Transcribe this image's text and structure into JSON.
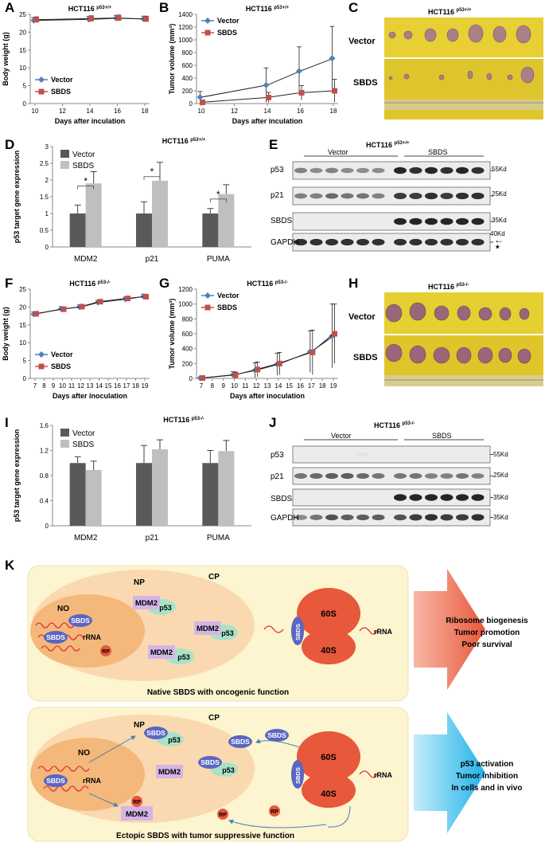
{
  "panel_letters": [
    "A",
    "B",
    "C",
    "D",
    "E",
    "F",
    "G",
    "H",
    "I",
    "J",
    "K"
  ],
  "chart_data": [
    {
      "id": "A",
      "type": "line",
      "title": "HCT116",
      "title_sup": "p53+/+",
      "xlabel": "Days after inculation",
      "ylabel": "Body weight (g)",
      "x": [
        10,
        14,
        16,
        18
      ],
      "xticks": [
        10,
        12,
        14,
        16,
        18
      ],
      "xlim": [
        10,
        18
      ],
      "yticks": [
        0,
        5,
        10,
        15,
        20,
        25
      ],
      "ylim": [
        0,
        25
      ],
      "legend": "bottom-left",
      "series": [
        {
          "name": "Vector",
          "color": "#4f81bd",
          "marker": "diamond",
          "values": [
            23.3,
            23.6,
            23.9,
            23.7
          ],
          "err": [
            0.8,
            0.8,
            0.8,
            0.8
          ]
        },
        {
          "name": "SBDS",
          "color": "#c0504d",
          "marker": "square",
          "values": [
            23.5,
            23.8,
            24.0,
            23.7
          ],
          "err": [
            0.8,
            0.8,
            0.8,
            0.8
          ]
        }
      ]
    },
    {
      "id": "B",
      "type": "line",
      "title": "HCT116",
      "title_sup": "p53+/+",
      "xlabel": "Days after inculation",
      "ylabel": "Tumor volume (mm³)",
      "x": [
        10,
        14,
        16,
        18
      ],
      "xticks": [
        10,
        12,
        14,
        16,
        18
      ],
      "xlim": [
        10,
        18
      ],
      "yticks": [
        0,
        200,
        400,
        600,
        800,
        1000,
        1200,
        1400
      ],
      "ylim": [
        0,
        1400
      ],
      "legend": "top-left",
      "series": [
        {
          "name": "Vector",
          "color": "#4f81bd",
          "marker": "diamond",
          "values": [
            100,
            290,
            510,
            710
          ],
          "err": [
            90,
            270,
            380,
            500
          ]
        },
        {
          "name": "SBDS",
          "color": "#c0504d",
          "marker": "square",
          "values": [
            20,
            95,
            170,
            200
          ],
          "err": [
            20,
            80,
            110,
            180
          ]
        }
      ]
    },
    {
      "id": "D",
      "type": "bar",
      "title": "HCT116",
      "title_sup": "p53+/+",
      "ylabel": "p53 target gene expression",
      "categories": [
        "MDM2",
        "p21",
        "PUMA"
      ],
      "yticks": [
        0,
        0.5,
        1,
        1.5,
        2,
        2.5,
        3
      ],
      "ylim": [
        0,
        3
      ],
      "legend": "top-left",
      "significance": [
        "*",
        "*",
        "*"
      ],
      "series": [
        {
          "name": "Vector",
          "color": "#595959",
          "values": [
            1.0,
            1.0,
            1.0
          ],
          "err": [
            0.25,
            0.35,
            0.15
          ]
        },
        {
          "name": "SBDS",
          "color": "#bfbfbf",
          "values": [
            1.9,
            1.98,
            1.58
          ],
          "err": [
            0.35,
            0.55,
            0.28
          ]
        }
      ]
    },
    {
      "id": "F",
      "type": "line",
      "title": "HCT116",
      "title_sup": "p53-/-",
      "xlabel": "Days after inoculation",
      "ylabel": "Body weight (g)",
      "x": [
        7,
        10,
        12,
        14,
        17,
        19
      ],
      "xticks": [
        7,
        8,
        9,
        10,
        11,
        12,
        13,
        14,
        15,
        16,
        17,
        18,
        19
      ],
      "xlim": [
        7,
        19
      ],
      "yticks": [
        0,
        5,
        10,
        15,
        20,
        25
      ],
      "ylim": [
        0,
        25
      ],
      "legend": "bottom-left",
      "series": [
        {
          "name": "Vector",
          "color": "#4f81bd",
          "marker": "diamond",
          "values": [
            18.0,
            19.5,
            20.0,
            21.3,
            22.2,
            23.0
          ],
          "err": [
            0.6,
            0.6,
            0.6,
            0.6,
            0.6,
            0.6
          ]
        },
        {
          "name": "SBDS",
          "color": "#c0504d",
          "marker": "square",
          "values": [
            18.1,
            19.4,
            20.1,
            21.5,
            22.4,
            22.9
          ],
          "err": [
            0.6,
            0.6,
            0.6,
            0.6,
            0.6,
            0.6
          ]
        }
      ]
    },
    {
      "id": "G",
      "type": "line",
      "title": "HCT116",
      "title_sup": "p53-/-",
      "xlabel": "Days after inoculation",
      "ylabel": "Tumor volume (mm³)",
      "x": [
        7,
        10,
        12,
        14,
        17,
        19
      ],
      "xticks": [
        7,
        8,
        9,
        10,
        11,
        12,
        13,
        14,
        15,
        16,
        17,
        18,
        19
      ],
      "xlim": [
        7,
        19
      ],
      "yticks": [
        0,
        200,
        400,
        600,
        800,
        1000,
        1200
      ],
      "ylim": [
        0,
        1200
      ],
      "legend": "top-left",
      "series": [
        {
          "name": "Vector",
          "color": "#4f81bd",
          "marker": "diamond",
          "values": [
            5,
            50,
            110,
            190,
            360,
            570
          ],
          "err": [
            5,
            40,
            100,
            150,
            280,
            430
          ]
        },
        {
          "name": "SBDS",
          "color": "#c0504d",
          "marker": "square",
          "values": [
            5,
            45,
            120,
            200,
            350,
            600
          ],
          "err": [
            5,
            40,
            100,
            150,
            300,
            400
          ]
        }
      ]
    },
    {
      "id": "I",
      "type": "bar",
      "title": "HCT116",
      "title_sup": "p53-/-",
      "ylabel": "p53 target gene expression",
      "categories": [
        "MDM2",
        "p21",
        "PUMA"
      ],
      "yticks": [
        0,
        0.4,
        0.8,
        1.2,
        1.6
      ],
      "ylim": [
        0,
        1.6
      ],
      "legend": "top-left",
      "series": [
        {
          "name": "Vector",
          "color": "#595959",
          "values": [
            1.0,
            1.0,
            1.0
          ],
          "err": [
            0.1,
            0.28,
            0.2
          ]
        },
        {
          "name": "SBDS",
          "color": "#bfbfbf",
          "values": [
            0.89,
            1.22,
            1.19
          ],
          "err": [
            0.14,
            0.15,
            0.17
          ]
        }
      ]
    }
  ],
  "photos": {
    "C": {
      "title": "HCT116",
      "title_sup": "p53+/+",
      "rows": [
        "Vector",
        "SBDS"
      ]
    },
    "H": {
      "title": "HCT116",
      "title_sup": "p53-/-",
      "rows": [
        "Vector",
        "SBDS"
      ]
    }
  },
  "blots": {
    "E": {
      "title": "HCT116",
      "title_sup": "p53+/+",
      "groups": [
        "Vector",
        "SBDS"
      ],
      "rows": [
        "p53",
        "p21",
        "SBDS",
        "GAPDH"
      ],
      "markers": [
        "55Kd",
        "25Kd",
        "35Kd",
        "40Kd"
      ],
      "star": "*"
    },
    "J": {
      "title": "HCT116",
      "title_sup": "p53-/-",
      "groups": [
        "Vector",
        "SBDS"
      ],
      "rows": [
        "p53",
        "p21",
        "SBDS",
        "GAPDH"
      ],
      "markers": [
        "55Kd",
        "25Kd",
        "35Kd",
        "35Kd"
      ]
    }
  },
  "model": {
    "top": {
      "cp": "CP",
      "np": "NP",
      "no": "NO",
      "mdm2": "MDM2",
      "p53": "p53",
      "sbds": "SBDS",
      "rrna": "rRNA",
      "rp": "RP",
      "s60": "60S",
      "s40": "40S",
      "caption": "Native SBDS with oncogenic function",
      "outcome": [
        "Ribosome biogenesis",
        "Tumor promotion",
        "Poor survival"
      ]
    },
    "bottom": {
      "cp": "CP",
      "np": "NP",
      "no": "NO",
      "mdm2": "MDM2",
      "p53": "p53",
      "sbds": "SBDS",
      "rrna": "rRNA",
      "rp": "RP",
      "s60": "60S",
      "s40": "40S",
      "caption": "Ectopic SBDS with tumor suppressive function",
      "outcome": [
        "p53 activation",
        "Tumor inhibition",
        "In cells and in vivo"
      ]
    }
  }
}
